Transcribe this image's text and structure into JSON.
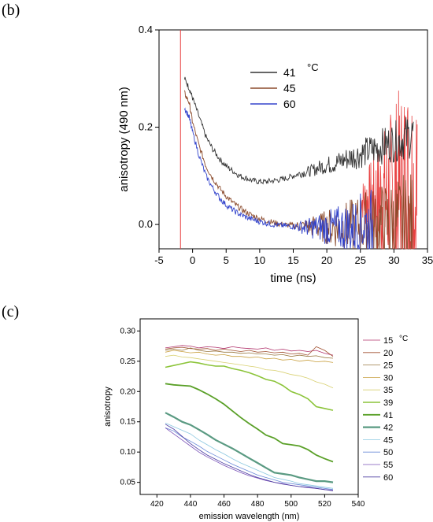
{
  "panels": {
    "b_label": "(b)",
    "c_label": "(c)"
  },
  "chart_data": [
    {
      "type": "line",
      "panel": "b",
      "xlabel": "time (ns)",
      "ylabel": "anisotropy (490 nm)",
      "xlim": [
        -5,
        35
      ],
      "ylim": [
        -0.05,
        0.4
      ],
      "xticks": [
        "-5",
        "0",
        "5",
        "10",
        "15",
        "20",
        "25",
        "30",
        "35"
      ],
      "yticks": [
        "0.0",
        "0.2",
        "0.4"
      ],
      "legend_unit": "°C",
      "legend_position": "top-right",
      "grid": false,
      "series": [
        {
          "name": "41",
          "color": "#333333",
          "x": [
            -1.2,
            -0.5,
            0,
            1,
            2,
            3,
            4,
            5,
            6,
            7,
            8,
            9,
            10,
            11,
            12,
            13,
            14,
            15,
            16,
            17,
            18,
            19,
            20,
            21,
            22,
            23,
            24,
            25,
            26,
            27,
            28,
            29,
            30,
            31,
            32,
            33
          ],
          "y": [
            0.3,
            0.28,
            0.26,
            0.22,
            0.18,
            0.155,
            0.135,
            0.12,
            0.11,
            0.1,
            0.095,
            0.09,
            0.088,
            0.088,
            0.09,
            0.092,
            0.095,
            0.1,
            0.105,
            0.108,
            0.112,
            0.118,
            0.122,
            0.125,
            0.13,
            0.135,
            0.14,
            0.145,
            0.15,
            0.155,
            0.16,
            0.165,
            0.17,
            0.175,
            0.18,
            0.185
          ]
        },
        {
          "name": "45",
          "color": "#8b4a2b",
          "x": [
            -1.2,
            -0.5,
            0,
            1,
            2,
            3,
            4,
            5,
            6,
            7,
            8,
            9,
            10,
            11,
            12,
            13,
            14,
            15,
            16,
            17,
            18,
            19,
            20,
            21,
            22,
            23,
            24,
            25,
            26,
            27,
            28,
            29,
            30,
            31,
            32,
            33
          ],
          "y": [
            0.27,
            0.25,
            0.21,
            0.16,
            0.12,
            0.095,
            0.075,
            0.058,
            0.045,
            0.034,
            0.025,
            0.018,
            0.012,
            0.008,
            0.004,
            0.001,
            -0.001,
            -0.002,
            -0.003,
            -0.004,
            -0.004,
            -0.005,
            -0.005,
            -0.005,
            -0.005,
            -0.005,
            -0.005,
            0.0,
            0.0,
            0.0,
            0.0,
            0.0,
            0.0,
            0.0,
            0.0,
            0.0
          ]
        },
        {
          "name": "60",
          "color": "#3344cc",
          "x": [
            -1.2,
            -0.5,
            0,
            1,
            2,
            3,
            4,
            5,
            6,
            7,
            8,
            9,
            10,
            11,
            12,
            13,
            14,
            15,
            16,
            17,
            18,
            19,
            20,
            21,
            22,
            23,
            24,
            25,
            26,
            27
          ],
          "y": [
            0.24,
            0.22,
            0.19,
            0.14,
            0.1,
            0.075,
            0.055,
            0.04,
            0.03,
            0.021,
            0.015,
            0.01,
            0.006,
            0.003,
            0.0,
            -0.002,
            -0.003,
            -0.004,
            -0.005,
            -0.006,
            -0.006,
            -0.006,
            -0.007,
            -0.007,
            -0.007,
            -0.007,
            -0.007,
            0.0,
            0.0,
            0.0
          ]
        }
      ]
    },
    {
      "type": "line",
      "panel": "c",
      "xlabel": "emission wavelength (nm)",
      "ylabel": "anisotropy",
      "xlim": [
        410,
        540
      ],
      "ylim": [
        0.03,
        0.32
      ],
      "xticks": [
        "420",
        "440",
        "460",
        "480",
        "500",
        "520",
        "540"
      ],
      "yticks": [
        "0.05",
        "0.10",
        "0.15",
        "0.20",
        "0.25",
        "0.30"
      ],
      "legend_unit": "°C",
      "legend_position": "right",
      "grid": false,
      "x": [
        425,
        430,
        435,
        440,
        445,
        450,
        455,
        460,
        465,
        470,
        475,
        480,
        485,
        490,
        495,
        500,
        505,
        510,
        515,
        520,
        525
      ],
      "series": [
        {
          "name": "15",
          "color": "#b0306a",
          "width": 0.8,
          "values": [
            0.272,
            0.274,
            0.276,
            0.275,
            0.272,
            0.274,
            0.273,
            0.271,
            0.274,
            0.272,
            0.271,
            0.27,
            0.272,
            0.268,
            0.27,
            0.267,
            0.268,
            0.266,
            0.268,
            0.263,
            0.26
          ]
        },
        {
          "name": "20",
          "color": "#a05030",
          "width": 0.8,
          "values": [
            0.27,
            0.272,
            0.273,
            0.271,
            0.27,
            0.271,
            0.268,
            0.27,
            0.268,
            0.266,
            0.268,
            0.265,
            0.266,
            0.264,
            0.265,
            0.262,
            0.263,
            0.26,
            0.274,
            0.268,
            0.258
          ]
        },
        {
          "name": "25",
          "color": "#9a7840",
          "width": 0.8,
          "values": [
            0.268,
            0.27,
            0.268,
            0.272,
            0.268,
            0.266,
            0.267,
            0.265,
            0.265,
            0.263,
            0.264,
            0.262,
            0.262,
            0.26,
            0.261,
            0.258,
            0.26,
            0.258,
            0.259,
            0.256,
            0.255
          ]
        },
        {
          "name": "30",
          "color": "#c9a040",
          "width": 0.8,
          "values": [
            0.265,
            0.268,
            0.266,
            0.264,
            0.265,
            0.262,
            0.26,
            0.261,
            0.258,
            0.258,
            0.256,
            0.257,
            0.254,
            0.255,
            0.252,
            0.253,
            0.25,
            0.252,
            0.249,
            0.25,
            0.248
          ]
        },
        {
          "name": "35",
          "color": "#d8d070",
          "width": 0.8,
          "values": [
            0.258,
            0.26,
            0.257,
            0.256,
            0.254,
            0.252,
            0.25,
            0.248,
            0.246,
            0.244,
            0.242,
            0.24,
            0.236,
            0.235,
            0.232,
            0.228,
            0.226,
            0.222,
            0.216,
            0.212,
            0.206
          ]
        },
        {
          "name": "39",
          "color": "#8cc43a",
          "width": 1.6,
          "values": [
            0.24,
            0.243,
            0.246,
            0.249,
            0.247,
            0.244,
            0.242,
            0.242,
            0.238,
            0.235,
            0.231,
            0.226,
            0.22,
            0.217,
            0.21,
            0.2,
            0.195,
            0.188,
            0.175,
            0.172,
            0.169
          ]
        },
        {
          "name": "41",
          "color": "#5aa028",
          "width": 1.8,
          "values": [
            0.213,
            0.211,
            0.21,
            0.209,
            0.203,
            0.196,
            0.188,
            0.179,
            0.168,
            0.157,
            0.147,
            0.138,
            0.128,
            0.123,
            0.114,
            0.112,
            0.11,
            0.104,
            0.095,
            0.089,
            0.084
          ]
        },
        {
          "name": "42",
          "color": "#5a9a82",
          "width": 2.2,
          "values": [
            0.165,
            0.158,
            0.15,
            0.145,
            0.137,
            0.129,
            0.12,
            0.113,
            0.106,
            0.098,
            0.09,
            0.082,
            0.074,
            0.066,
            0.064,
            0.062,
            0.058,
            0.055,
            0.052,
            0.052,
            0.05
          ]
        },
        {
          "name": "45",
          "color": "#8cc8e0",
          "width": 0.8,
          "values": [
            0.148,
            0.142,
            0.136,
            0.13,
            0.12,
            0.112,
            0.104,
            0.097,
            0.089,
            0.082,
            0.076,
            0.07,
            0.064,
            0.058,
            0.055,
            0.052,
            0.048,
            0.046,
            0.044,
            0.042,
            0.04
          ]
        },
        {
          "name": "50",
          "color": "#6a8ad8",
          "width": 0.8,
          "values": [
            0.14,
            0.135,
            0.125,
            0.118,
            0.11,
            0.101,
            0.094,
            0.087,
            0.08,
            0.074,
            0.068,
            0.062,
            0.058,
            0.054,
            0.05,
            0.048,
            0.046,
            0.044,
            0.042,
            0.04,
            0.038
          ]
        },
        {
          "name": "55",
          "color": "#7a52b8",
          "width": 0.8,
          "values": [
            0.14,
            0.13,
            0.12,
            0.11,
            0.1,
            0.092,
            0.085,
            0.078,
            0.072,
            0.066,
            0.061,
            0.057,
            0.053,
            0.05,
            0.048,
            0.045,
            0.043,
            0.041,
            0.04,
            0.038,
            0.037
          ]
        },
        {
          "name": "60",
          "color": "#4a3aa0",
          "width": 0.8,
          "values": [
            0.146,
            0.138,
            0.126,
            0.114,
            0.104,
            0.095,
            0.088,
            0.081,
            0.075,
            0.069,
            0.063,
            0.058,
            0.054,
            0.05,
            0.047,
            0.045,
            0.043,
            0.042,
            0.04,
            0.038,
            0.036
          ]
        }
      ]
    }
  ]
}
